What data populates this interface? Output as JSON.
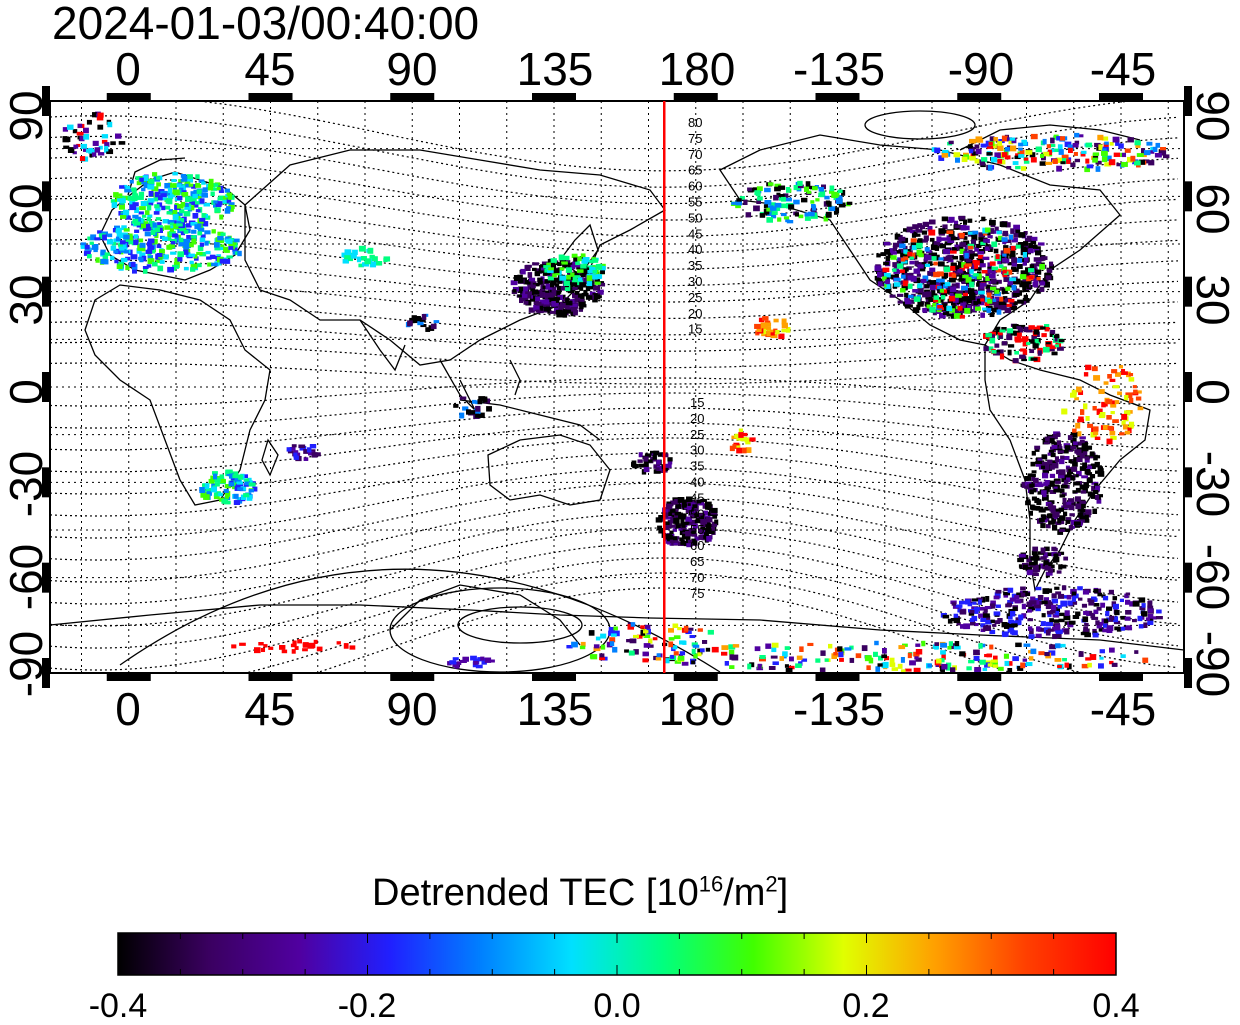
{
  "title": "2024-01-03/00:40:00",
  "map": {
    "top_lon_labels": [
      "0",
      "45",
      "90",
      "135",
      "180",
      "-135",
      "-90",
      "-45"
    ],
    "bottom_lon_labels": [
      "0",
      "45",
      "90",
      "135",
      "180",
      "-135",
      "-90",
      "-45"
    ],
    "left_lat_labels": [
      "90",
      "60",
      "30",
      "0",
      "-30",
      "-60",
      "-90"
    ],
    "right_lat_labels": [
      "90",
      "60",
      "30",
      "0",
      "-30",
      "-60",
      "-90"
    ],
    "terminator_labels_north": [
      "80",
      "75",
      "70",
      "65",
      "60",
      "55",
      "50",
      "45",
      "40",
      "35",
      "30",
      "25",
      "20",
      "15"
    ],
    "terminator_labels_south": [
      "15",
      "20",
      "25",
      "30",
      "35",
      "40",
      "45",
      "50",
      "55",
      "60",
      "65",
      "70",
      "75"
    ],
    "reference_line_color": "#ff0000",
    "reference_meridian": 170
  },
  "colorbar": {
    "title": "Detrended TEC  [10",
    "title_exp": "16",
    "title_unit": "/m",
    "title_unit_exp": "2",
    "title_close": "]",
    "ticks": [
      "-0.4",
      "-0.2",
      "0.0",
      "0.2",
      "0.4"
    ],
    "min": -0.4,
    "max": 0.4,
    "colors": [
      "#000000",
      "#3a0060",
      "#5000a0",
      "#2020ff",
      "#0080ff",
      "#00e0ff",
      "#00ff80",
      "#40ff00",
      "#e0ff00",
      "#ffa000",
      "#ff4000",
      "#ff0000"
    ]
  }
}
